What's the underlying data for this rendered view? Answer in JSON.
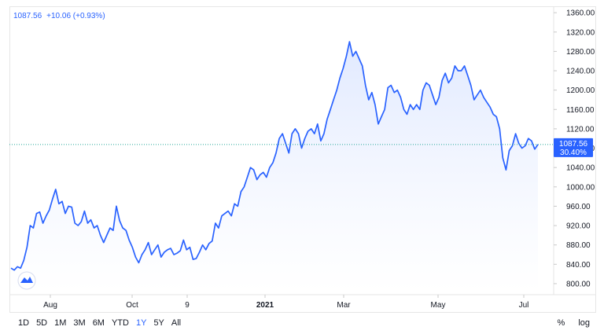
{
  "header": {
    "price": "1087.56",
    "change": "+10.06 (+0.93%)"
  },
  "price_tag": {
    "value": "1087.56",
    "pct": "30.40%"
  },
  "colors": {
    "line": "#2962ff",
    "area_top": "#dfe8ff",
    "area_bottom": "#ffffff",
    "grid": "#f0f3fa",
    "tag": "#2962ff",
    "last_line": "#26a69a"
  },
  "ranges": [
    {
      "label": "1D",
      "active": false
    },
    {
      "label": "5D",
      "active": false
    },
    {
      "label": "1M",
      "active": false
    },
    {
      "label": "3M",
      "active": false
    },
    {
      "label": "6M",
      "active": false
    },
    {
      "label": "YTD",
      "active": false
    },
    {
      "label": "1Y",
      "active": true
    },
    {
      "label": "5Y",
      "active": false
    },
    {
      "label": "All",
      "active": false
    }
  ],
  "right_tools": {
    "percent": "%",
    "log": "log"
  },
  "chart_data": {
    "type": "area",
    "x_ticks": [
      "Aug",
      "Oct",
      "9",
      "2021",
      "Mar",
      "May",
      "Jul"
    ],
    "y_ticks": [
      "1360.00",
      "1320.00",
      "1280.00",
      "1240.00",
      "1200.00",
      "1160.00",
      "1120.00",
      "1080.00",
      "1040.00",
      "1000.00",
      "960.00",
      "920.00",
      "880.00",
      "840.00",
      "800.00"
    ],
    "ylim": [
      782,
      1370
    ],
    "series": [
      {
        "values": [
          832,
          828,
          835,
          832,
          848,
          875,
          920,
          915,
          945,
          948,
          925,
          940,
          952,
          975,
          995,
          965,
          970,
          945,
          960,
          958,
          925,
          920,
          928,
          950,
          925,
          932,
          915,
          920,
          900,
          885,
          900,
          915,
          910,
          960,
          930,
          915,
          910,
          890,
          875,
          855,
          843,
          860,
          870,
          885,
          860,
          870,
          880,
          855,
          865,
          870,
          873,
          860,
          863,
          868,
          890,
          870,
          875,
          850,
          852,
          865,
          880,
          870,
          883,
          888,
          925,
          915,
          940,
          945,
          950,
          940,
          965,
          960,
          990,
          1000,
          1020,
          1040,
          1035,
          1015,
          1025,
          1030,
          1020,
          1040,
          1050,
          1070,
          1100,
          1110,
          1090,
          1070,
          1110,
          1120,
          1110,
          1080,
          1100,
          1115,
          1120,
          1110,
          1130,
          1095,
          1110,
          1140,
          1160,
          1180,
          1200,
          1225,
          1245,
          1270,
          1300,
          1270,
          1280,
          1265,
          1250,
          1210,
          1180,
          1195,
          1170,
          1130,
          1145,
          1160,
          1205,
          1210,
          1195,
          1200,
          1185,
          1160,
          1150,
          1170,
          1160,
          1170,
          1160,
          1200,
          1215,
          1210,
          1190,
          1170,
          1185,
          1220,
          1235,
          1215,
          1225,
          1250,
          1240,
          1240,
          1250,
          1230,
          1210,
          1180,
          1190,
          1200,
          1185,
          1175,
          1165,
          1150,
          1145,
          1120,
          1060,
          1035,
          1075,
          1085,
          1110,
          1090,
          1080,
          1085,
          1100,
          1095,
          1078,
          1087.56
        ]
      }
    ],
    "last_value": 1087.56,
    "grid": true
  }
}
